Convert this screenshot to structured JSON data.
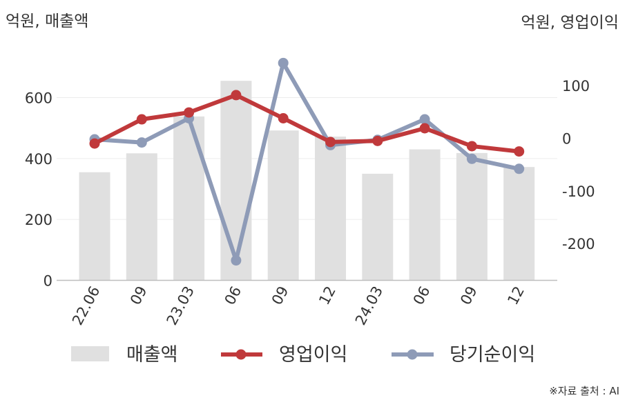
{
  "chart_data": {
    "type": "bar",
    "categories": [
      "22.06",
      "09",
      "23.03",
      "06",
      "09",
      "12",
      "24.03",
      "06",
      "09",
      "12"
    ],
    "left_unit_label": "억원, 매출액",
    "right_unit_label": "억원, 영업이익",
    "left_axis": {
      "ylim": [
        0,
        700
      ],
      "ticks": [
        "0",
        "200",
        "400",
        "600"
      ],
      "tick_values": [
        0,
        200,
        400,
        600
      ]
    },
    "right_axis": {
      "ylim": [
        -270,
        150
      ],
      "ticks": [
        "-200",
        "-100",
        "0",
        "100"
      ],
      "tick_values": [
        -200,
        -100,
        0,
        100
      ]
    },
    "series": [
      {
        "name": "매출액",
        "type": "bar",
        "axis": "left",
        "color": "#e0e0e0",
        "values": [
          355,
          417,
          538,
          655,
          492,
          472,
          350,
          430,
          418,
          372
        ]
      },
      {
        "name": "영업이익",
        "type": "line",
        "axis": "right",
        "color": "#c0393b",
        "values": [
          -10,
          36,
          49,
          82,
          38,
          -7,
          -5,
          19,
          -15,
          -25
        ]
      },
      {
        "name": "당기순이익",
        "type": "line",
        "axis": "right",
        "color": "#8e9bb7",
        "values": [
          -2,
          -8,
          38,
          -232,
          143,
          -13,
          -3,
          36,
          -39,
          -58
        ]
      }
    ],
    "grid": true,
    "legend_position": "bottom"
  },
  "source_note": "※자료 출처 : AI"
}
